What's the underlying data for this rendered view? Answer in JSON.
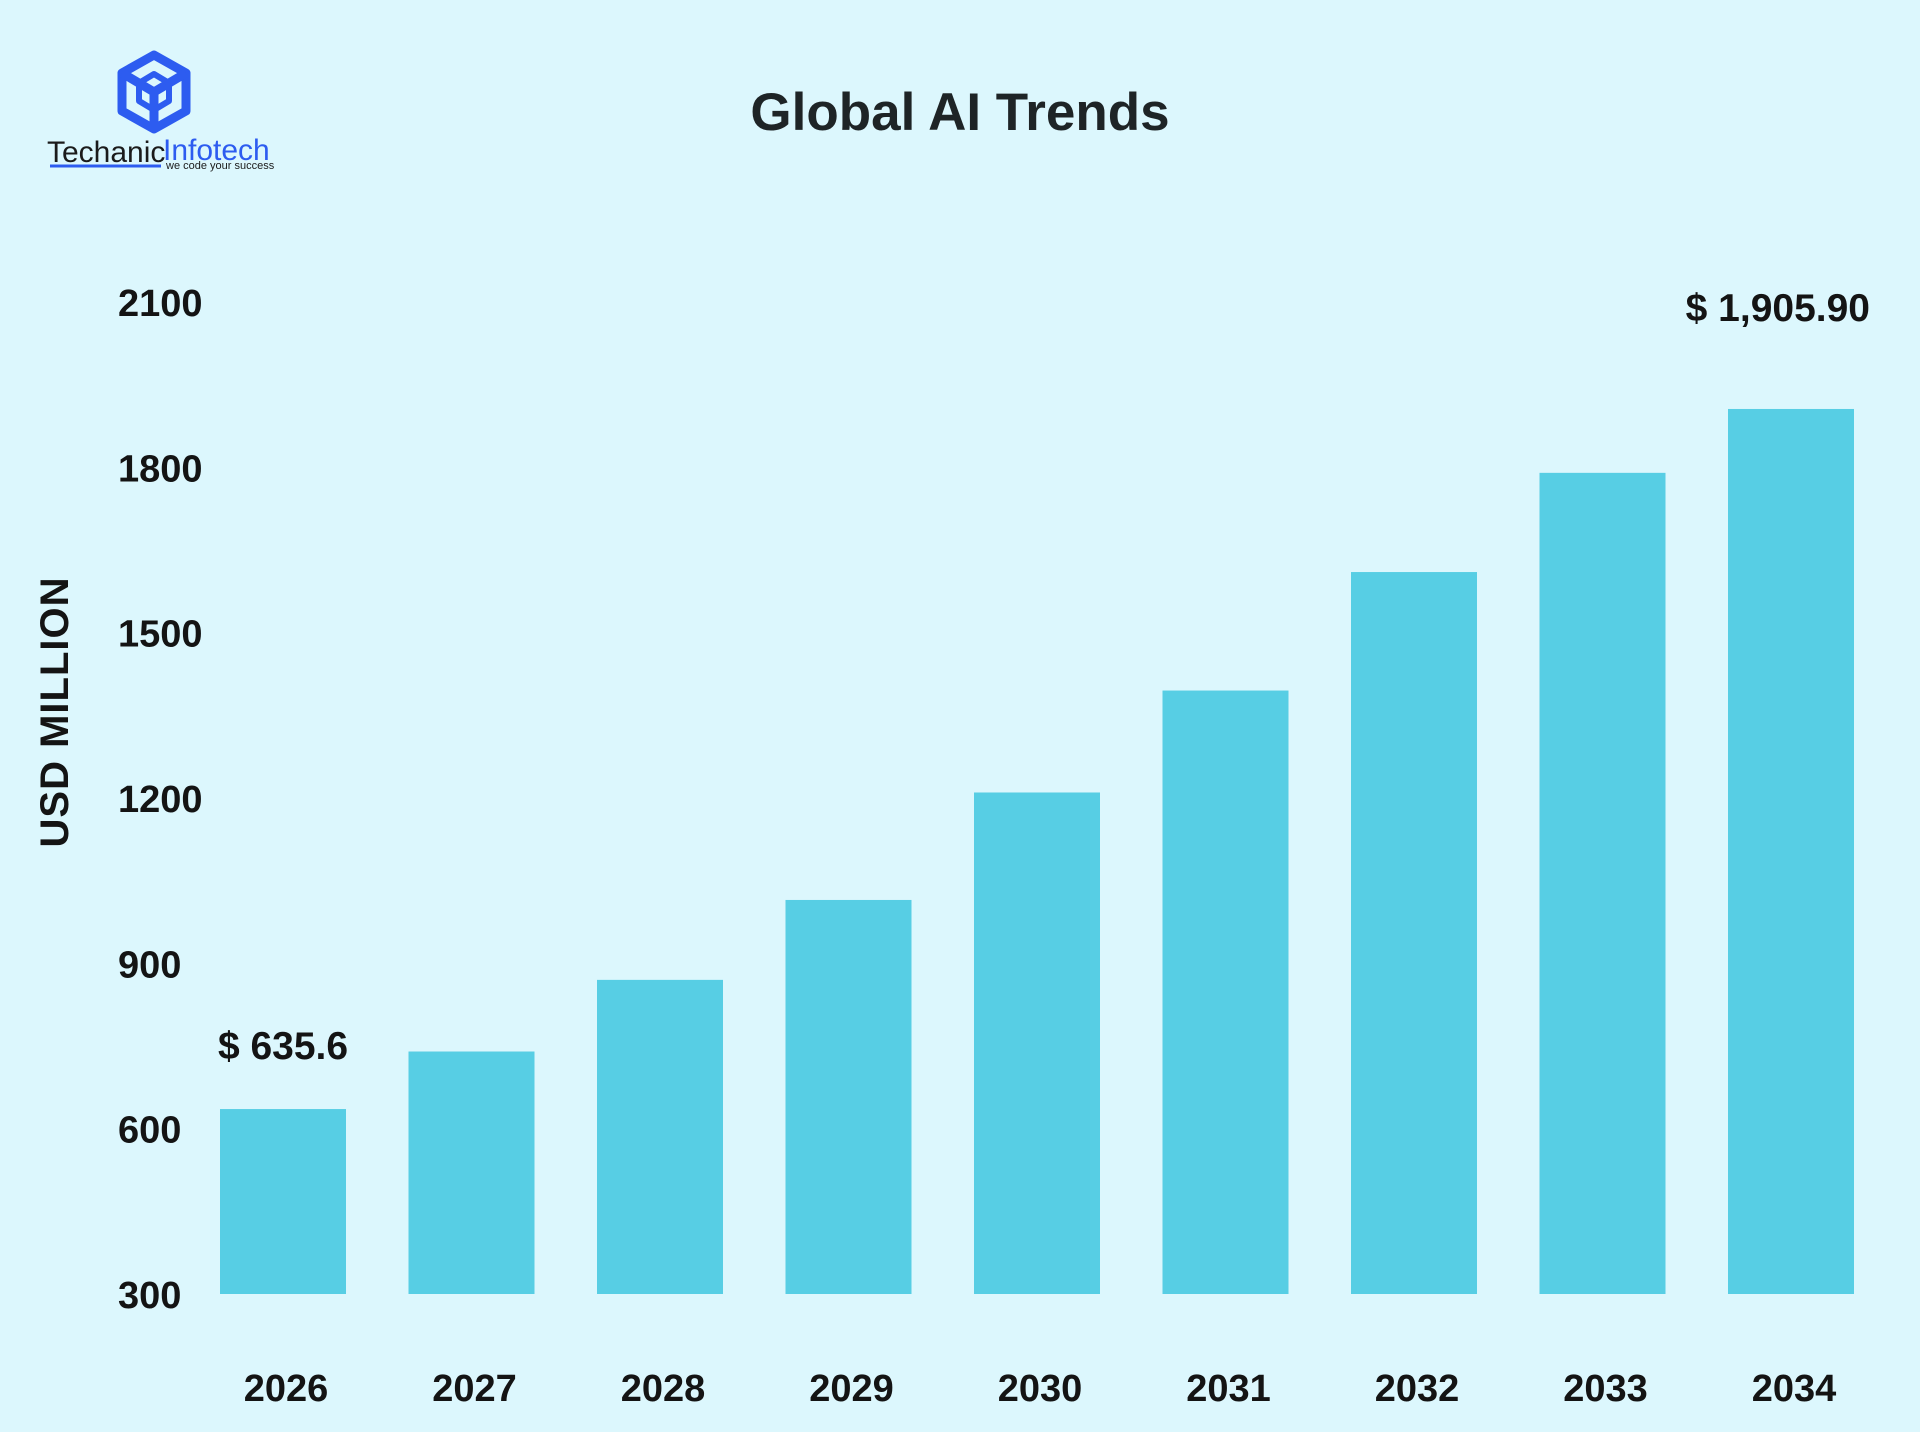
{
  "brand": {
    "name_part1": "Techanic",
    "name_part2": "Infotech",
    "tagline": "we code your success",
    "logo_icon": "cube-logo-icon",
    "colors": {
      "logo": "#2d5cf0"
    }
  },
  "chart_data": {
    "type": "bar",
    "title": "Global AI Trends",
    "xlabel": "",
    "ylabel": "USD MILLION",
    "categories": [
      "2026",
      "2027",
      "2028",
      "2029",
      "2030",
      "2031",
      "2032",
      "2033",
      "2034"
    ],
    "values": [
      635.6,
      740,
      870,
      1015,
      1210,
      1395,
      1610,
      1790,
      1905.9
    ],
    "yticks": [
      "300",
      "600",
      "900",
      "1200",
      "1500",
      "1800",
      "2100"
    ],
    "ylim": [
      300,
      2100
    ],
    "data_labels": [
      {
        "index": 0,
        "text": "$ 635.6"
      },
      {
        "index": 8,
        "text": "$ 1,905.90"
      }
    ],
    "grid": false,
    "legend": "none",
    "colors": {
      "bar": "#57cee4",
      "background": "#dcf7fd",
      "text": "#141414"
    }
  }
}
